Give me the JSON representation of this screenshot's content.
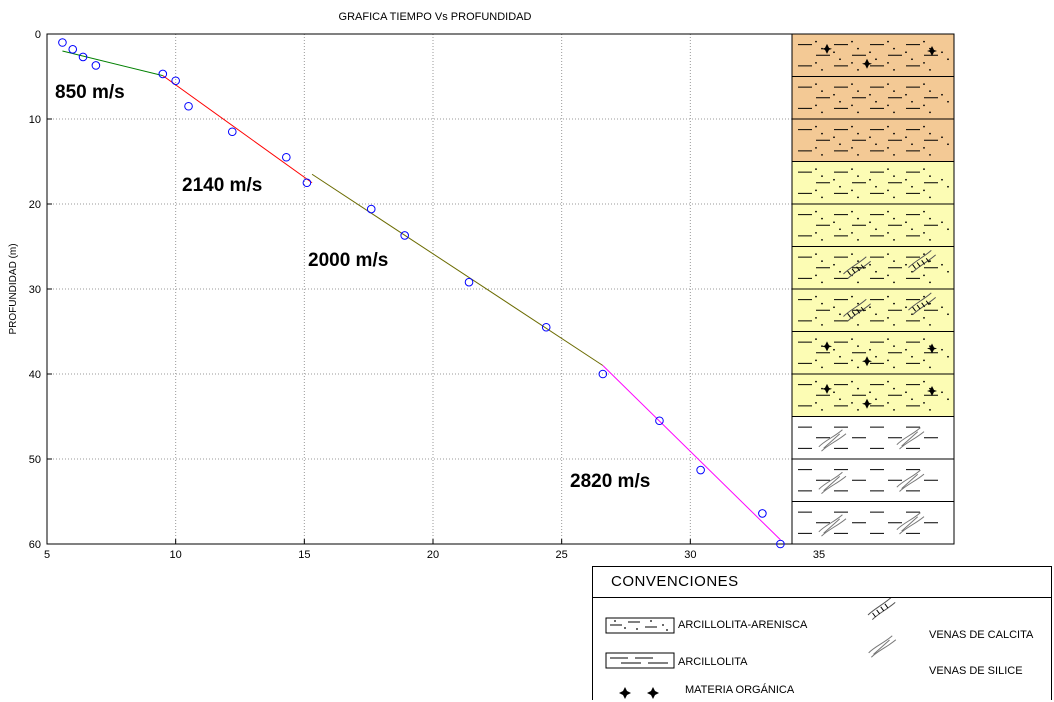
{
  "chart_data": {
    "type": "scatter",
    "title": "GRAFICA TIEMPO Vs PROFUNDIDAD",
    "ylabel": "PROFUNDIDAD (m)",
    "xlabel": "",
    "xlim": [
      5,
      35
    ],
    "ylim": [
      0,
      60
    ],
    "y_inverted": true,
    "grid": true,
    "xticks": [
      "5",
      "10",
      "15",
      "20",
      "25",
      "30",
      "35"
    ],
    "yticks": [
      "0",
      "10",
      "20",
      "30",
      "40",
      "50",
      "60"
    ],
    "points": {
      "x": [
        5.6,
        6.0,
        6.4,
        6.9,
        9.5,
        10.0,
        10.5,
        12.2,
        14.3,
        15.1,
        17.6,
        18.9,
        21.4,
        24.4,
        26.6,
        28.8,
        30.4,
        32.8,
        33.5
      ],
      "y": [
        1.0,
        1.8,
        2.7,
        3.7,
        4.7,
        5.5,
        8.5,
        11.5,
        14.5,
        17.5,
        20.6,
        23.7,
        29.2,
        34.5,
        40.0,
        45.5,
        51.3,
        56.4,
        60.0
      ]
    },
    "fit_lines": [
      {
        "label": "850 m/s",
        "color": "#008000",
        "x": [
          5.6,
          9.5
        ],
        "y": [
          2.0,
          4.9
        ]
      },
      {
        "label": "2140 m/s",
        "color": "#ff0000",
        "x": [
          9.5,
          15.3
        ],
        "y": [
          4.9,
          17.5
        ]
      },
      {
        "label": "2000 m/s",
        "color": "#6b6b00",
        "x": [
          15.3,
          26.6
        ],
        "y": [
          16.5,
          39.0
        ]
      },
      {
        "label": "2820 m/s",
        "color": "#ff00ff",
        "x": [
          26.6,
          33.5
        ],
        "y": [
          39.0,
          59.5
        ]
      }
    ],
    "point_color": "#0000ff",
    "annotations": [
      "850 m/s",
      "2140 m/s",
      "2000 m/s",
      "2820 m/s"
    ]
  },
  "column": {
    "layers": [
      {
        "type": "arcillolita-arenisca",
        "fill": "#f3c995",
        "materia": true,
        "calcita": false,
        "silice": false
      },
      {
        "type": "arcillolita-arenisca",
        "fill": "#f3c995",
        "materia": false,
        "calcita": false,
        "silice": false
      },
      {
        "type": "arcillolita-arenisca",
        "fill": "#f3c995",
        "materia": false,
        "calcita": false,
        "silice": false
      },
      {
        "type": "arcillolita-arenisca",
        "fill": "#fcfcb4",
        "materia": false,
        "calcita": false,
        "silice": false
      },
      {
        "type": "arcillolita-arenisca",
        "fill": "#fcfcb4",
        "materia": false,
        "calcita": false,
        "silice": false
      },
      {
        "type": "arcillolita-arenisca",
        "fill": "#fcfcb4",
        "materia": false,
        "calcita": true,
        "silice": false
      },
      {
        "type": "arcillolita-arenisca",
        "fill": "#fcfcb4",
        "materia": false,
        "calcita": true,
        "silice": false
      },
      {
        "type": "arcillolita-arenisca",
        "fill": "#fcfcb4",
        "materia": true,
        "calcita": false,
        "silice": false
      },
      {
        "type": "arcillolita-arenisca",
        "fill": "#fcfcb4",
        "materia": true,
        "calcita": false,
        "silice": false
      },
      {
        "type": "arcillolita",
        "fill": "#ffffff",
        "materia": false,
        "calcita": false,
        "silice": true
      },
      {
        "type": "arcillolita",
        "fill": "#ffffff",
        "materia": false,
        "calcita": false,
        "silice": true
      },
      {
        "type": "arcillolita",
        "fill": "#ffffff",
        "materia": false,
        "calcita": false,
        "silice": true
      }
    ]
  },
  "legend": {
    "title": "CONVENCIONES",
    "items": {
      "arcillolita_arenisca": "ARCILLOLITA-ARENISCA",
      "arcillolita": "ARCILLOLITA",
      "materia_organica": "MATERIA ORGÁNICA",
      "venas_calcita": "VENAS DE CALCITA",
      "venas_silice": "VENAS DE SILICE"
    }
  }
}
